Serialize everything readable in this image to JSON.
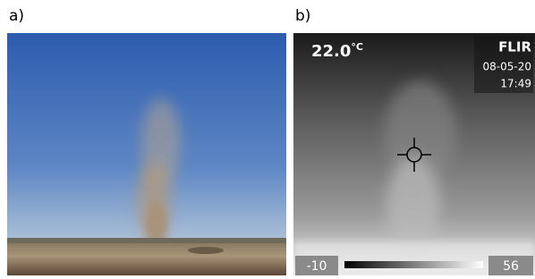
{
  "panels": [
    {
      "label": "a)"
    },
    {
      "label": "b)",
      "temperature": "22.0",
      "unit": "°C",
      "brand": "FLIR",
      "date": "08-05-20",
      "time": "17:49",
      "scale_min": "-10",
      "scale_max": "56"
    }
  ]
}
